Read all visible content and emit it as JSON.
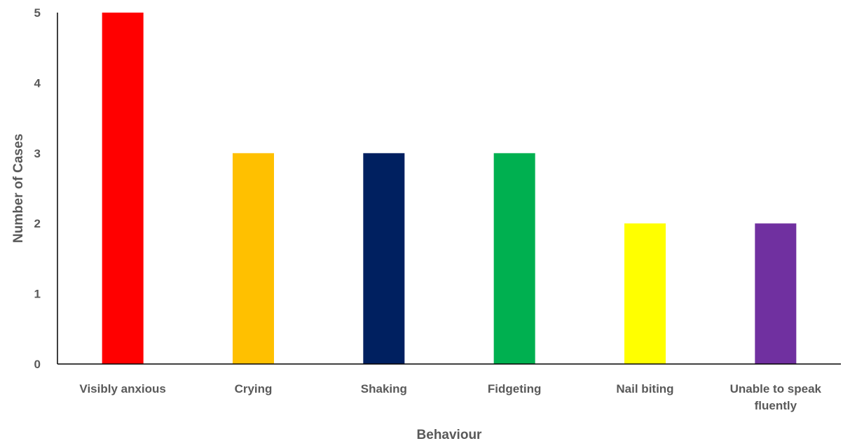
{
  "chart_data": {
    "type": "bar",
    "title": "",
    "xlabel": "Behaviour",
    "ylabel": "Number of Cases",
    "ylim": [
      0,
      5
    ],
    "yticks": [
      0,
      1,
      2,
      3,
      4,
      5
    ],
    "grid": false,
    "legend": "none",
    "categories": [
      "Visibly anxious",
      "Crying",
      "Shaking",
      "Fidgeting",
      "Nail biting",
      "Unable to speak fluently"
    ],
    "values": [
      5,
      3,
      3,
      3,
      2,
      2
    ],
    "colors": [
      "#FF0000",
      "#FFC000",
      "#002060",
      "#00B050",
      "#FFFF00",
      "#7030A0"
    ]
  }
}
